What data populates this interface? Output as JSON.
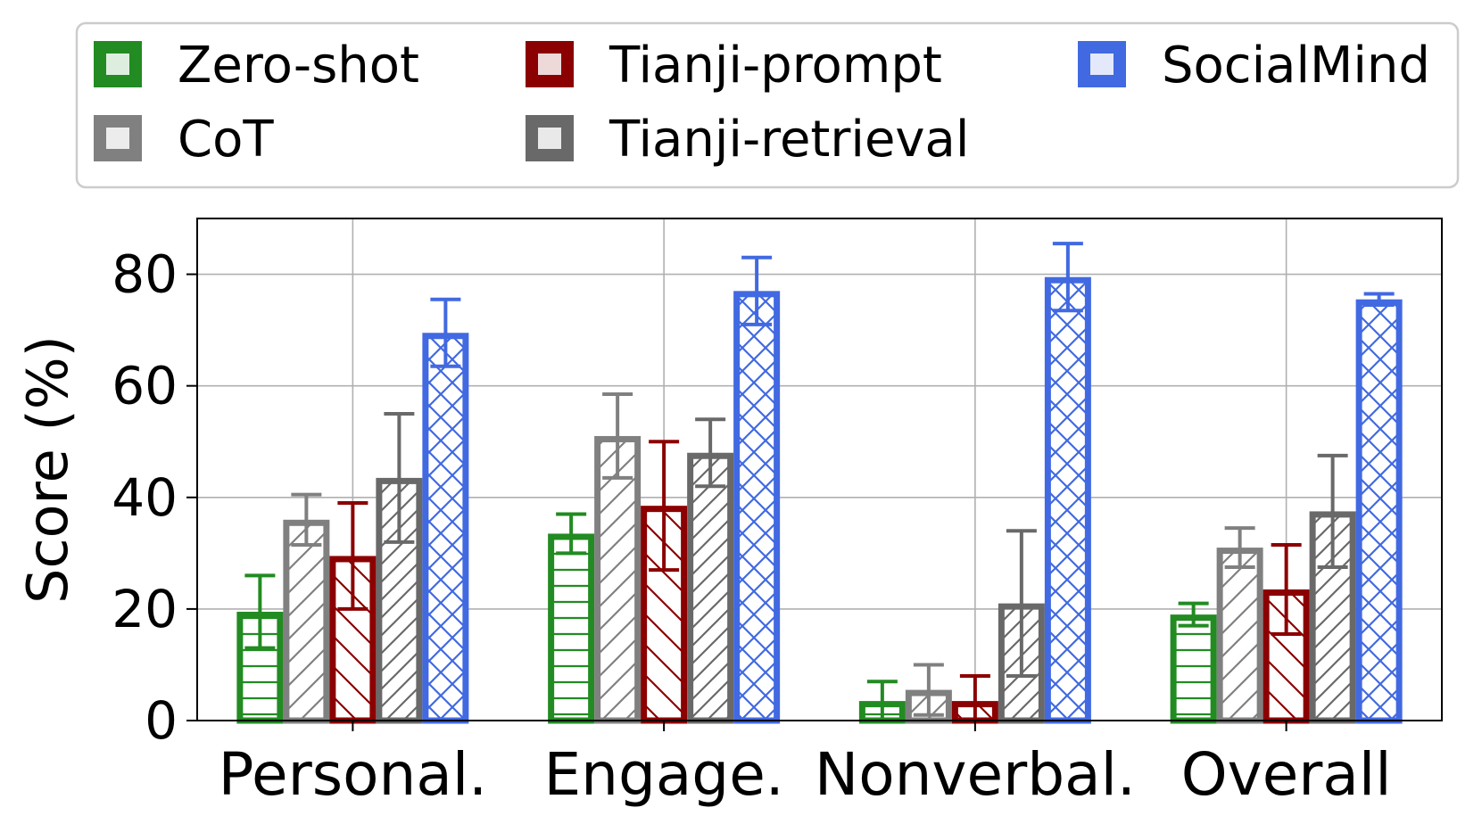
{
  "chart_data": {
    "type": "bar",
    "title": "",
    "xlabel": "",
    "ylabel": "Score (%)",
    "ylim": [
      0,
      90
    ],
    "yticks": [
      0,
      20,
      40,
      60,
      80
    ],
    "grid": true,
    "legend_position": "top",
    "categories": [
      "Personal.",
      "Engage.",
      "Nonverbal.",
      "Overall"
    ],
    "series": [
      {
        "name": "Zero-shot",
        "color": "#228b22",
        "hatch": "horizontal",
        "values": [
          19.5,
          33.5,
          3.5,
          19.0
        ],
        "errors": [
          6.5,
          3.5,
          3.5,
          2.0
        ]
      },
      {
        "name": "CoT",
        "color": "#808080",
        "hatch": "diagonal",
        "values": [
          36.0,
          51.0,
          5.5,
          31.0
        ],
        "errors": [
          4.5,
          7.5,
          4.5,
          3.5
        ]
      },
      {
        "name": "Tianji-prompt",
        "color": "#8b0000",
        "hatch": "backdiagonal",
        "values": [
          29.5,
          38.5,
          3.5,
          23.5
        ],
        "errors": [
          9.5,
          11.5,
          4.5,
          8.0
        ]
      },
      {
        "name": "Tianji-retrieval",
        "color": "#696969",
        "hatch": "diagonal-dense",
        "values": [
          43.5,
          48.0,
          21.0,
          37.5
        ],
        "errors": [
          11.5,
          6.0,
          13.0,
          10.0
        ]
      },
      {
        "name": "SocialMind",
        "color": "#4169e1",
        "hatch": "cross",
        "values": [
          69.5,
          77.0,
          79.5,
          75.5
        ],
        "errors": [
          6.0,
          6.0,
          6.0,
          1.0
        ]
      }
    ]
  }
}
